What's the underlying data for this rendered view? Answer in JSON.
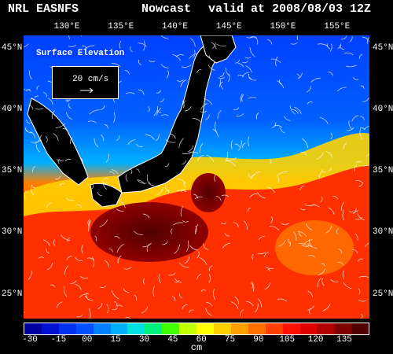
{
  "header": {
    "org": "NRL EASNFS",
    "mode": "Nowcast",
    "valid": "valid at 2008/08/03 12Z"
  },
  "axes": {
    "lon_labels": [
      "130°E",
      "135°E",
      "140°E",
      "145°E",
      "150°E",
      "155°E"
    ],
    "lon_values": [
      130,
      135,
      140,
      145,
      150,
      155
    ],
    "lat_labels": [
      "45°N",
      "40°N",
      "35°N",
      "30°N",
      "25°N"
    ],
    "lat_values": [
      45,
      40,
      35,
      30,
      25
    ],
    "lon_range": [
      126,
      158
    ],
    "lat_range": [
      23,
      46
    ]
  },
  "legend": {
    "title": "Surface Elevation",
    "speed_label": "20 cm/s"
  },
  "colorbar": {
    "ticks": [
      "-30",
      "-15",
      "00",
      "15",
      "30",
      "45",
      "60",
      "75",
      "90",
      "105",
      "120",
      "135"
    ],
    "unit": "cm",
    "colors": [
      "#0000a0",
      "#0010d0",
      "#0030f0",
      "#0050ff",
      "#0080ff",
      "#00b0ff",
      "#00e0e0",
      "#00f080",
      "#40ff00",
      "#c0ff00",
      "#ffff00",
      "#ffd000",
      "#ffa000",
      "#ff7000",
      "#ff4000",
      "#ff1000",
      "#e00000",
      "#b00000",
      "#800000",
      "#500000"
    ]
  },
  "colors": {
    "land": "#000000",
    "coast": "#ffffff",
    "arrows": "#ffffff"
  }
}
